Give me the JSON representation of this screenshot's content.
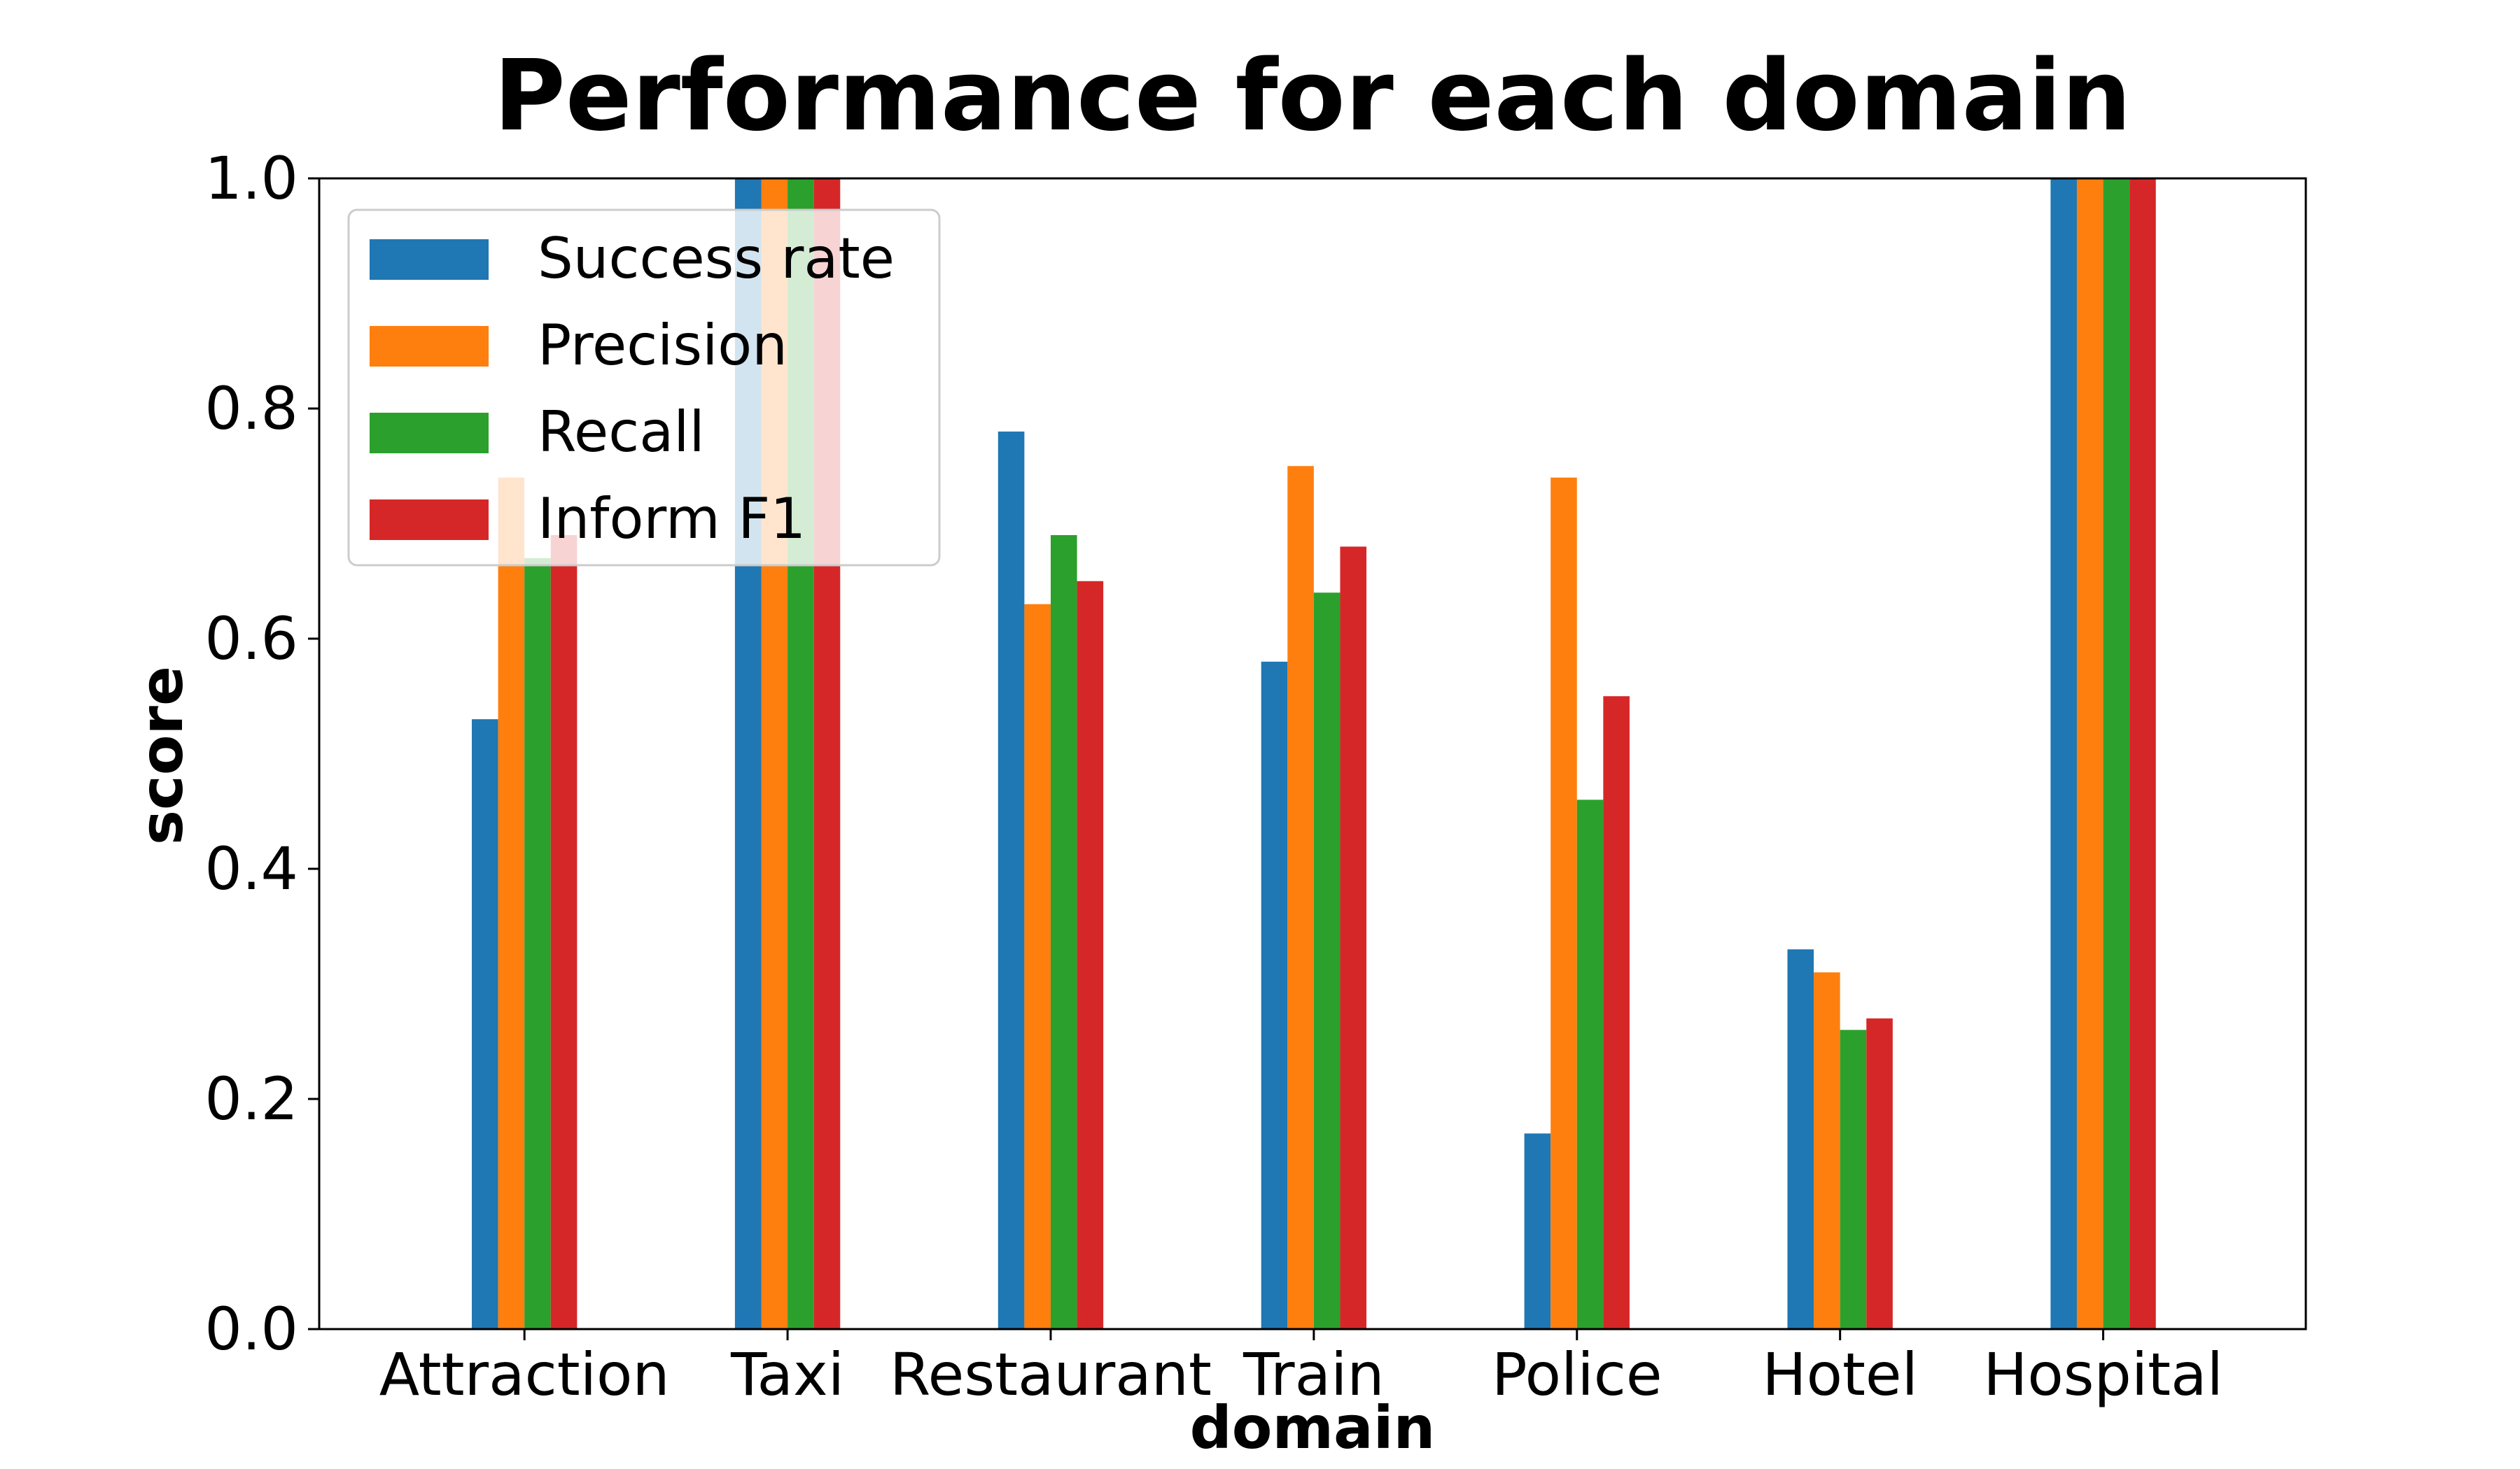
{
  "chart_data": {
    "type": "bar",
    "title": "Performance for each domain",
    "xlabel": "domain",
    "ylabel": "score",
    "ylim": [
      0,
      1.0
    ],
    "yticks": [
      "0.0",
      "0.2",
      "0.4",
      "0.6",
      "0.8",
      "1.0"
    ],
    "categories": [
      "Attraction",
      "Taxi",
      "Restaurant",
      "Train",
      "Police",
      "Hotel",
      "Hospital"
    ],
    "series": [
      {
        "name": "Success rate",
        "color": "#1f77b4",
        "values": [
          0.53,
          1.0,
          0.78,
          0.58,
          0.17,
          0.33,
          1.0
        ]
      },
      {
        "name": "Precision",
        "color": "#ff7f0e",
        "values": [
          0.74,
          1.0,
          0.63,
          0.75,
          0.74,
          0.31,
          1.0
        ]
      },
      {
        "name": "Recall",
        "color": "#2ca02c",
        "values": [
          0.67,
          1.0,
          0.69,
          0.64,
          0.46,
          0.26,
          1.0
        ]
      },
      {
        "name": "Inform F1",
        "color": "#d62728",
        "values": [
          0.69,
          1.0,
          0.65,
          0.68,
          0.55,
          0.27,
          1.0
        ]
      }
    ],
    "legend_position": "top-left",
    "grid": false
  }
}
